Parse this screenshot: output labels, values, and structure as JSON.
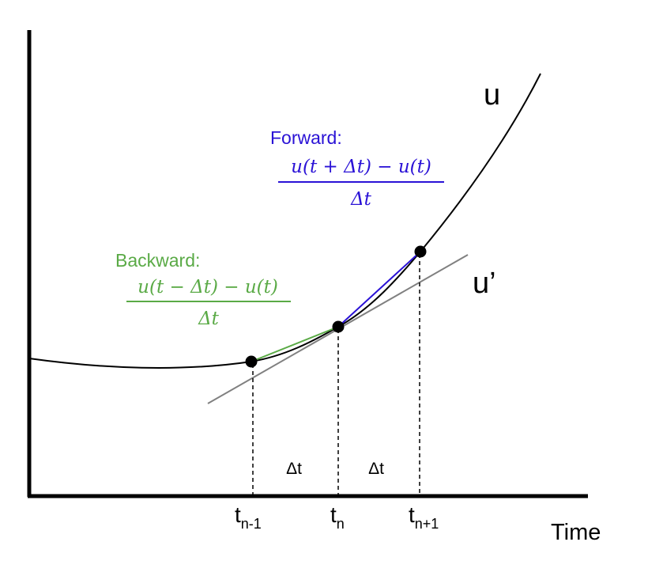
{
  "colors": {
    "axis": "#000000",
    "curve": "#000000",
    "tangent": "#808080",
    "forward": "#2a12d6",
    "backward": "#5aaa46",
    "dashed": "#000000"
  },
  "labels": {
    "curve": "u",
    "derivative": "u’",
    "x_axis": "Time",
    "t_prev_base": "t",
    "t_prev_sub": "n-1",
    "t_curr_base": "t",
    "t_curr_sub": "n",
    "t_next_base": "t",
    "t_next_sub": "n+1",
    "dt_left": "Δt",
    "dt_right": "Δt"
  },
  "forward": {
    "title": "Forward:",
    "numerator": "u(t + Δt) − u(t)",
    "denominator": "Δt"
  },
  "backward": {
    "title": "Backward:",
    "numerator": "u(t − Δt) − u(t)",
    "denominator": "Δt"
  }
}
